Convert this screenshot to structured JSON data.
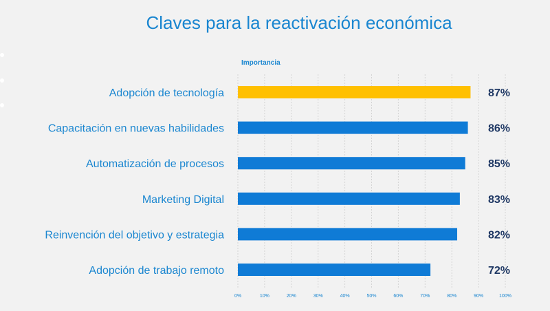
{
  "chart_data": {
    "type": "bar",
    "orientation": "horizontal",
    "title": "Claves para la reactivación económica",
    "legend": "Importancia",
    "categories": [
      "Adopción de tecnología",
      "Capacitación en nuevas habilidades",
      "Automatización de procesos",
      "Marketing Digital",
      "Reinvención del objetivo y estrategia",
      "Adopción de trabajo remoto"
    ],
    "values": [
      87,
      86,
      85,
      83,
      82,
      72
    ],
    "value_labels": [
      "87%",
      "86%",
      "85%",
      "83%",
      "82%",
      "72%"
    ],
    "xlim": [
      0,
      100
    ],
    "x_ticks": [
      "0%",
      "10%",
      "20%",
      "30%",
      "40%",
      "50%",
      "60%",
      "70%",
      "80%",
      "90%",
      "100%"
    ],
    "grid": true,
    "colors": {
      "highlight": "#ffc000",
      "bar": "#0f7bd6",
      "category_text": "#1a86d0",
      "value_text": "#1f3864"
    }
  }
}
